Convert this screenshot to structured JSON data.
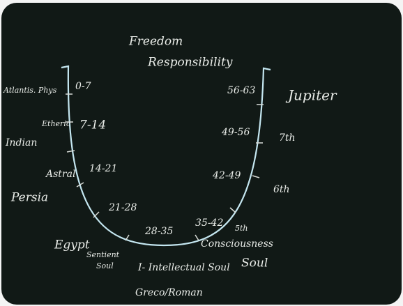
{
  "header": {
    "lines": [
      "Freedom",
      "Responsibility"
    ]
  },
  "ages": [
    "0-7",
    "7-14",
    "14-21",
    "21-28",
    "28-35",
    "35-42",
    "42-49",
    "49-56",
    "56-63"
  ],
  "left_labels": {
    "bodies": [
      "Atlantis. Phys",
      "Etheric",
      "Astral"
    ],
    "epochs": [
      "Indian",
      "Persia",
      "Egypt"
    ],
    "sentient": [
      "Sentient",
      "Soul"
    ]
  },
  "bottom_labels": {
    "intellectual": "I- Intellectual Soul",
    "epoch": "Greco/Roman"
  },
  "right_labels": {
    "fifth": "5th",
    "consciousness": "Consciousness",
    "soul": "Soul",
    "sixth": "6th",
    "seventh": "7th",
    "jupiter": "Jupiter"
  }
}
